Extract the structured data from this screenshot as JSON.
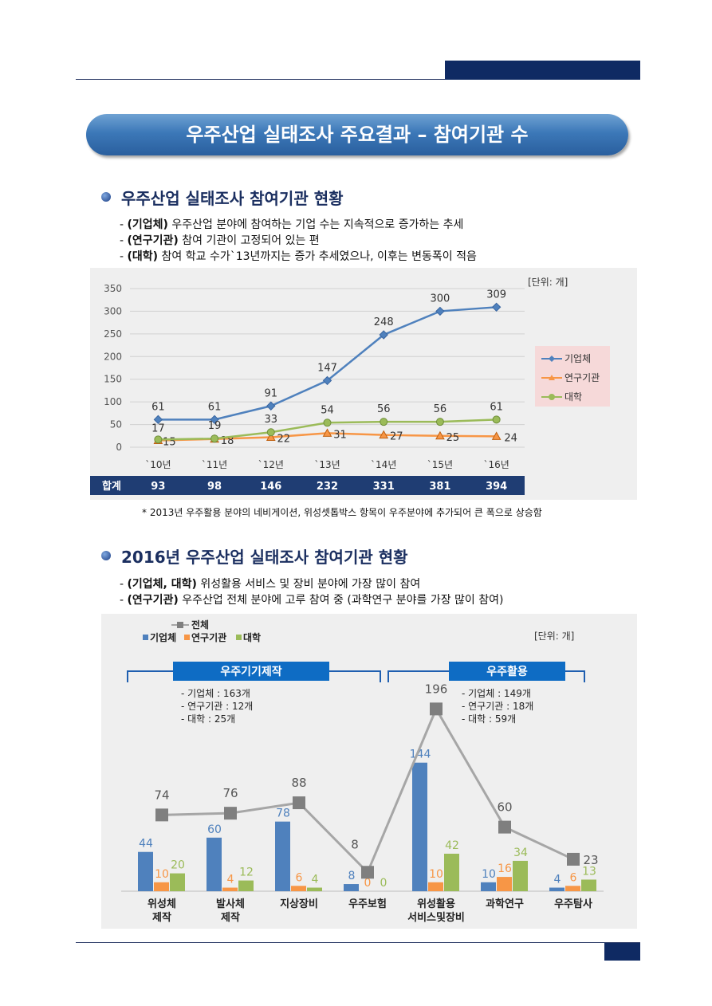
{
  "banner": "우주산업 실태조사 주요결과 – 참여기관 수",
  "section1": {
    "title": "우주산업 실태조사 참여기관 현황",
    "bullets": [
      {
        "key": "(기업체)",
        "text": " 우주산업 분야에 참여하는 기업 수는 지속적으로 증가하는 추세"
      },
      {
        "key": "(연구기관)",
        "text": " 참여 기관이 고정되어 있는 편"
      },
      {
        "key": "(대학)",
        "text": " 참여 학교 수가`13년까지는 증가 추세였으나, 이후는 변동폭이 적음"
      }
    ],
    "note": "* 2013년 우주활용 분야의 네비게이션, 위성셋톱박스 항목이 우주분야에 추가되어 큰 폭으로 상승함"
  },
  "section2": {
    "title": "2016년 우주산업 실태조사 참여기관 현황",
    "bullets": [
      {
        "key": "(기업체, 대학)",
        "text": " 위성활용 서비스 및 장비 분야에 가장 많이 참여"
      },
      {
        "key": "(연구기관)",
        "text": " 우주산업 전체 분야에 고루 참여 중 (과학연구 분야를 가장 많이 참여)"
      }
    ]
  },
  "chart_data": [
    {
      "type": "line",
      "unit": "[단위: 개]",
      "categories": [
        "`10년",
        "`11년",
        "`12년",
        "`13년",
        "`14년",
        "`15년",
        "`16년"
      ],
      "ylim": [
        0,
        350
      ],
      "yticks": [
        0,
        50,
        100,
        150,
        200,
        250,
        300,
        350
      ],
      "series": [
        {
          "name": "기업체",
          "values": [
            61,
            61,
            91,
            147,
            248,
            300,
            309
          ],
          "color": "#4f81bd",
          "marker": "diamond"
        },
        {
          "name": "연구기관",
          "values": [
            15,
            18,
            22,
            31,
            27,
            25,
            24
          ],
          "color": "#f79646",
          "marker": "triangle"
        },
        {
          "name": "대학",
          "values": [
            17,
            19,
            33,
            54,
            56,
            56,
            61
          ],
          "color": "#9bbb59",
          "marker": "circle"
        }
      ],
      "total_label": "합계",
      "totals": [
        93,
        98,
        146,
        232,
        331,
        381,
        394
      ],
      "legend": "right",
      "grid": true
    },
    {
      "type": "bar",
      "unit": "[단위: 개]",
      "categories": [
        "위성체\n제작",
        "발사체\n제작",
        "지상장비",
        "우주보험",
        "위성활용\n서비스및장비",
        "과학연구",
        "우주탐사"
      ],
      "series": [
        {
          "name": "기업체",
          "values": [
            44,
            60,
            78,
            8,
            144,
            10,
            4
          ],
          "color": "#4f81bd"
        },
        {
          "name": "연구기관",
          "values": [
            10,
            4,
            6,
            0,
            10,
            16,
            6
          ],
          "color": "#f79646"
        },
        {
          "name": "대학",
          "values": [
            20,
            12,
            4,
            0,
            42,
            34,
            13
          ],
          "color": "#9bbb59"
        }
      ],
      "line_series": {
        "name": "전체",
        "values": [
          74,
          76,
          88,
          8,
          196,
          60,
          23
        ],
        "color": "#a6a6a6"
      },
      "groups": [
        {
          "label": "우주기기제작",
          "details": [
            "- 기업체 : 163개",
            "- 연구기관 : 12개",
            "- 대학 : 25개"
          ]
        },
        {
          "label": "우주활용",
          "details": [
            "- 기업체 : 149개",
            "- 연구기관 : 18개",
            "- 대학 : 59개"
          ]
        }
      ],
      "legend": "top-left"
    }
  ]
}
